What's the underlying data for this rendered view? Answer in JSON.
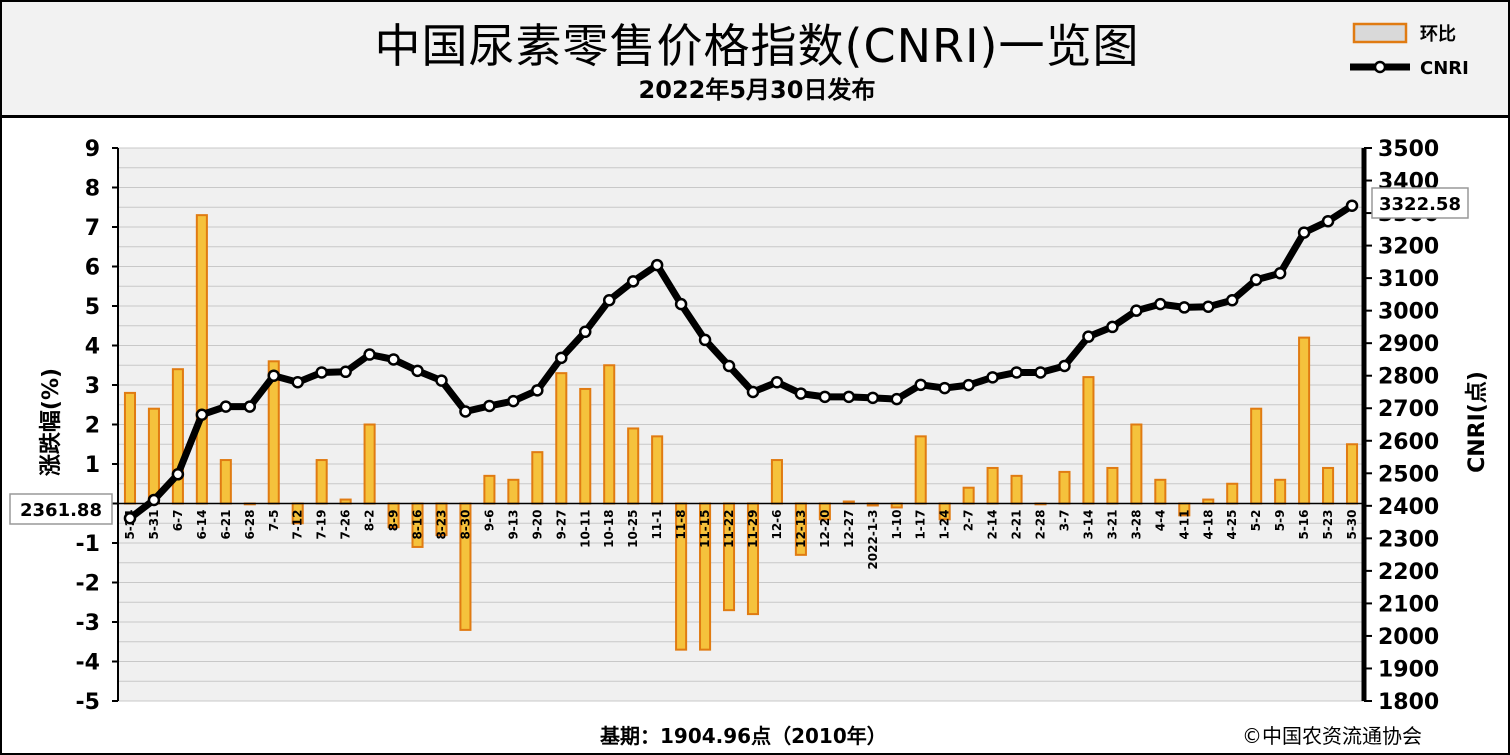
{
  "header": {
    "title": "中国尿素零售价格指数(CNRI)一览图",
    "subtitle": "2022年5月30日发布"
  },
  "footer": {
    "base_period": "基期：1904.96点（2010年）",
    "copyright": "©中国农资流通协会"
  },
  "colors": {
    "bar_fill": "#f5c23c",
    "bar_edge": "#e07b12",
    "line": "#000000",
    "grid": "#c8c8c8",
    "plot_bg": "#f0f0f0"
  },
  "chart_data": {
    "type": "bar+line",
    "categories": [
      "5-24",
      "5-31",
      "6-7",
      "6-14",
      "6-21",
      "6-28",
      "7-5",
      "7-12",
      "7-19",
      "7-26",
      "8-2",
      "8-9",
      "8-16",
      "8-23",
      "8-30",
      "9-6",
      "9-13",
      "9-20",
      "9-27",
      "10-11",
      "10-18",
      "10-25",
      "11-1",
      "11-8",
      "11-15",
      "11-22",
      "11-29",
      "12-6",
      "12-13",
      "12-20",
      "12-27",
      "2022-1-3",
      "1-10",
      "1-17",
      "1-24",
      "2-7",
      "2-14",
      "2-21",
      "2-28",
      "3-7",
      "3-14",
      "3-21",
      "3-28",
      "4-4",
      "4-11",
      "4-18",
      "4-25",
      "5-2",
      "5-9",
      "5-16",
      "5-23",
      "5-30"
    ],
    "series": [
      {
        "name": "环比",
        "type": "bar",
        "axis": "left",
        "values": [
          2.8,
          2.4,
          3.4,
          7.3,
          1.1,
          0.0,
          3.6,
          -0.5,
          1.1,
          0.1,
          2.0,
          -0.6,
          -1.1,
          -0.8,
          -3.2,
          0.7,
          0.6,
          1.3,
          3.3,
          2.9,
          3.5,
          1.9,
          1.7,
          -3.7,
          -3.7,
          -2.7,
          -2.8,
          1.1,
          -1.3,
          -0.4,
          0.05,
          -0.05,
          -0.1,
          1.7,
          -0.4,
          0.4,
          0.9,
          0.7,
          0.0,
          0.8,
          3.2,
          0.9,
          2.0,
          0.6,
          -0.3,
          0.1,
          0.5,
          2.4,
          0.6,
          4.2,
          0.9,
          1.5
        ]
      },
      {
        "name": "CNRI",
        "type": "line",
        "axis": "right",
        "values": [
          2361.88,
          2418,
          2497,
          2680,
          2705,
          2705,
          2800,
          2780,
          2810,
          2812,
          2865,
          2850,
          2815,
          2785,
          2690,
          2707,
          2722,
          2755,
          2855,
          2935,
          3032,
          3090,
          3140,
          3020,
          2910,
          2830,
          2750,
          2780,
          2745,
          2735,
          2735,
          2732,
          2728,
          2772,
          2762,
          2771,
          2795,
          2810,
          2810,
          2830,
          2920,
          2950,
          3000,
          3020,
          3010,
          3012,
          3032,
          3095,
          3115,
          3240,
          3275,
          3322.58
        ]
      }
    ],
    "left_axis": {
      "label": "涨跌幅(%)",
      "range": [
        -5,
        9
      ],
      "ticks": [
        "9",
        "8",
        "7",
        "6",
        "5",
        "4",
        "3",
        "2",
        "1",
        "0",
        "-1",
        "-2",
        "-3",
        "-4",
        "-5"
      ]
    },
    "right_axis": {
      "label": "CNRI(点)",
      "range": [
        1800,
        3500
      ],
      "ticks": [
        "3500",
        "3400",
        "3300",
        "3200",
        "3100",
        "3000",
        "2900",
        "2800",
        "2700",
        "2600",
        "2500",
        "2400",
        "2300",
        "2200",
        "2100",
        "2000",
        "1900",
        "1800"
      ]
    },
    "annotations": {
      "first_value": "2361.88",
      "last_value": "3322.58"
    },
    "legend": {
      "position": "top-right",
      "entries": [
        "环比",
        "CNRI"
      ]
    },
    "grid": true
  }
}
